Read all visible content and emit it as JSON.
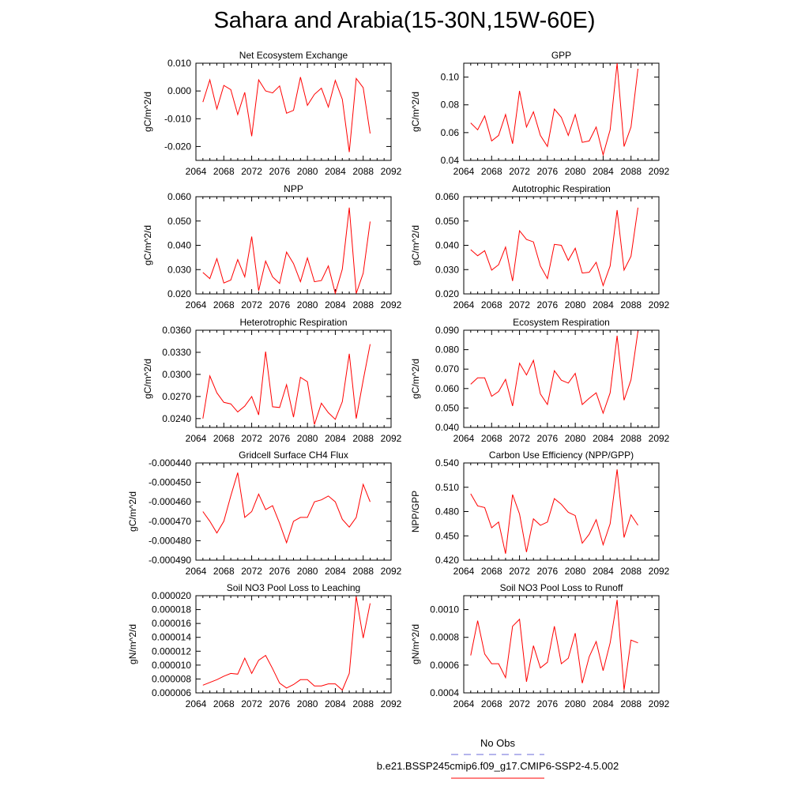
{
  "title": "Sahara and Arabia(15-30N,15W-60E)",
  "colors": {
    "series": "#ff0000",
    "obs": "#6a6ad8",
    "axis": "#000000"
  },
  "legend": {
    "obs_label": "No Obs",
    "model_label": "b.e21.BSSP245cmip6.f09_g17.CMIP6-SSP2-4.5.002"
  },
  "chart_data": [
    {
      "type": "line",
      "title": "Net Ecosystem Exchange",
      "ylabel": "gC/m^2/d",
      "xlim": [
        2064,
        2092
      ],
      "xticks": [
        "2064",
        "2068",
        "2072",
        "2076",
        "2080",
        "2084",
        "2088",
        "2092"
      ],
      "ylim": [
        -0.025,
        0.01
      ],
      "yticks": [
        "0.010",
        "0.000",
        "-0.010",
        "-0.020"
      ],
      "x": [
        2065,
        2066,
        2067,
        2068,
        2069,
        2070,
        2071,
        2072,
        2073,
        2074,
        2075,
        2076,
        2077,
        2078,
        2079,
        2080,
        2081,
        2082,
        2083,
        2084,
        2085,
        2086,
        2087,
        2088,
        2089
      ],
      "values": [
        -0.004,
        0.004,
        -0.0065,
        0.002,
        0.0005,
        -0.0085,
        -0.0005,
        -0.0163,
        0.004,
        0.0,
        -0.0007,
        0.0018,
        -0.008,
        -0.007,
        0.005,
        -0.0052,
        -0.0012,
        0.001,
        -0.0058,
        0.0038,
        -0.003,
        -0.022,
        0.0045,
        0.0012,
        -0.0153
      ]
    },
    {
      "type": "line",
      "title": "GPP",
      "ylabel": "gC/m^2/d",
      "xlim": [
        2064,
        2092
      ],
      "xticks": [
        "2064",
        "2068",
        "2072",
        "2076",
        "2080",
        "2084",
        "2088",
        "2092"
      ],
      "ylim": [
        0.04,
        0.11
      ],
      "yticks": [
        "0.10",
        "0.08",
        "0.06",
        "0.04"
      ],
      "x": [
        2065,
        2066,
        2067,
        2068,
        2069,
        2070,
        2071,
        2072,
        2073,
        2074,
        2075,
        2076,
        2077,
        2078,
        2079,
        2080,
        2081,
        2082,
        2083,
        2084,
        2085,
        2086,
        2087,
        2088,
        2089
      ],
      "values": [
        0.067,
        0.062,
        0.072,
        0.054,
        0.058,
        0.073,
        0.052,
        0.09,
        0.064,
        0.075,
        0.058,
        0.05,
        0.077,
        0.071,
        0.058,
        0.073,
        0.053,
        0.054,
        0.064,
        0.044,
        0.062,
        0.11,
        0.05,
        0.064,
        0.106
      ]
    },
    {
      "type": "line",
      "title": "NPP",
      "ylabel": "gC/m^2/d",
      "xlim": [
        2064,
        2092
      ],
      "xticks": [
        "2064",
        "2068",
        "2072",
        "2076",
        "2080",
        "2084",
        "2088",
        "2092"
      ],
      "ylim": [
        0.02,
        0.06
      ],
      "yticks": [
        "0.060",
        "0.050",
        "0.040",
        "0.030",
        "0.020"
      ],
      "x": [
        2065,
        2066,
        2067,
        2068,
        2069,
        2070,
        2071,
        2072,
        2073,
        2074,
        2075,
        2076,
        2077,
        2078,
        2079,
        2080,
        2081,
        2082,
        2083,
        2084,
        2085,
        2086,
        2087,
        2088,
        2089
      ],
      "values": [
        0.0288,
        0.0263,
        0.0345,
        0.0245,
        0.0257,
        0.0341,
        0.027,
        0.0436,
        0.0213,
        0.0335,
        0.027,
        0.0243,
        0.0372,
        0.0325,
        0.025,
        0.0348,
        0.025,
        0.0255,
        0.0315,
        0.0202,
        0.0302,
        0.0555,
        0.0202,
        0.0285,
        0.0498
      ]
    },
    {
      "type": "line",
      "title": "Autotrophic Respiration",
      "ylabel": "gC/m^2/d",
      "xlim": [
        2064,
        2092
      ],
      "xticks": [
        "2064",
        "2068",
        "2072",
        "2076",
        "2080",
        "2084",
        "2088",
        "2092"
      ],
      "ylim": [
        0.02,
        0.06
      ],
      "yticks": [
        "0.060",
        "0.050",
        "0.040",
        "0.030",
        "0.020"
      ],
      "x": [
        2065,
        2066,
        2067,
        2068,
        2069,
        2070,
        2071,
        2072,
        2073,
        2074,
        2075,
        2076,
        2077,
        2078,
        2079,
        2080,
        2081,
        2082,
        2083,
        2084,
        2085,
        2086,
        2087,
        2088,
        2089
      ],
      "values": [
        0.0382,
        0.0357,
        0.0378,
        0.0298,
        0.032,
        0.0393,
        0.0253,
        0.046,
        0.0424,
        0.0414,
        0.0315,
        0.0263,
        0.0404,
        0.04,
        0.0338,
        0.0388,
        0.0286,
        0.0289,
        0.033,
        0.0234,
        0.0315,
        0.0545,
        0.0298,
        0.0355,
        0.0555
      ]
    },
    {
      "type": "line",
      "title": "Heterotrophic Respiration",
      "ylabel": "gC/m^2/d",
      "xlim": [
        2064,
        2092
      ],
      "xticks": [
        "2064",
        "2068",
        "2072",
        "2076",
        "2080",
        "2084",
        "2088",
        "2092"
      ],
      "ylim": [
        0.0228,
        0.036
      ],
      "yticks": [
        "0.0360",
        "0.0330",
        "0.0300",
        "0.0270",
        "0.0240"
      ],
      "x": [
        2065,
        2066,
        2067,
        2068,
        2069,
        2070,
        2071,
        2072,
        2073,
        2074,
        2075,
        2076,
        2077,
        2078,
        2079,
        2080,
        2081,
        2082,
        2083,
        2084,
        2085,
        2086,
        2087,
        2088,
        2089
      ],
      "values": [
        0.024,
        0.0298,
        0.0275,
        0.0262,
        0.026,
        0.0249,
        0.0257,
        0.027,
        0.0245,
        0.0331,
        0.0256,
        0.0255,
        0.0286,
        0.0242,
        0.0296,
        0.029,
        0.0232,
        0.0261,
        0.0248,
        0.0239,
        0.0263,
        0.0328,
        0.024,
        0.0292,
        0.0341
      ]
    },
    {
      "type": "line",
      "title": "Ecosystem Respiration",
      "ylabel": "gC/m^2/d",
      "xlim": [
        2064,
        2092
      ],
      "xticks": [
        "2064",
        "2068",
        "2072",
        "2076",
        "2080",
        "2084",
        "2088",
        "2092"
      ],
      "ylim": [
        0.04,
        0.09
      ],
      "yticks": [
        "0.090",
        "0.080",
        "0.070",
        "0.060",
        "0.050",
        "0.040"
      ],
      "x": [
        2065,
        2066,
        2067,
        2068,
        2069,
        2070,
        2071,
        2072,
        2073,
        2074,
        2075,
        2076,
        2077,
        2078,
        2079,
        2080,
        2081,
        2082,
        2083,
        2084,
        2085,
        2086,
        2087,
        2088,
        2089
      ],
      "values": [
        0.0622,
        0.0655,
        0.0655,
        0.056,
        0.0585,
        0.0647,
        0.051,
        0.073,
        0.067,
        0.0745,
        0.0572,
        0.0518,
        0.0692,
        0.0643,
        0.0628,
        0.0678,
        0.0518,
        0.055,
        0.0578,
        0.0473,
        0.0578,
        0.0872,
        0.054,
        0.0645,
        0.0895
      ]
    },
    {
      "type": "line",
      "title": "Gridcell Surface CH4 Flux",
      "ylabel": "gC/m^2/d",
      "xlim": [
        2064,
        2092
      ],
      "xticks": [
        "2064",
        "2068",
        "2072",
        "2076",
        "2080",
        "2084",
        "2088",
        "2092"
      ],
      "ylim": [
        -0.00049,
        -0.00044
      ],
      "yticks": [
        "-0.000440",
        "-0.000450",
        "-0.000460",
        "-0.000470",
        "-0.000480",
        "-0.000490"
      ],
      "x": [
        2065,
        2066,
        2067,
        2068,
        2069,
        2070,
        2071,
        2072,
        2073,
        2074,
        2075,
        2076,
        2077,
        2078,
        2079,
        2080,
        2081,
        2082,
        2083,
        2084,
        2085,
        2086,
        2087,
        2088,
        2089
      ],
      "values": [
        -0.000465,
        -0.00047,
        -0.000476,
        -0.00047,
        -0.000457,
        -0.000445,
        -0.000468,
        -0.000465,
        -0.000456,
        -0.000464,
        -0.000462,
        -0.000471,
        -0.000481,
        -0.00047,
        -0.000468,
        -0.000468,
        -0.00046,
        -0.000459,
        -0.000457,
        -0.00046,
        -0.000469,
        -0.000473,
        -0.000468,
        -0.000451,
        -0.00046
      ]
    },
    {
      "type": "line",
      "title": "Carbon Use Efficiency (NPP/GPP)",
      "ylabel": "NPP/GPP",
      "xlim": [
        2064,
        2092
      ],
      "xticks": [
        "2064",
        "2068",
        "2072",
        "2076",
        "2080",
        "2084",
        "2088",
        "2092"
      ],
      "ylim": [
        0.42,
        0.54
      ],
      "yticks": [
        "0.540",
        "0.510",
        "0.480",
        "0.450",
        "0.420"
      ],
      "x": [
        2065,
        2066,
        2067,
        2068,
        2069,
        2070,
        2071,
        2072,
        2073,
        2074,
        2075,
        2076,
        2077,
        2078,
        2079,
        2080,
        2081,
        2082,
        2083,
        2084,
        2085,
        2086,
        2087,
        2088,
        2089
      ],
      "values": [
        0.502,
        0.487,
        0.485,
        0.46,
        0.467,
        0.428,
        0.501,
        0.477,
        0.43,
        0.471,
        0.463,
        0.467,
        0.496,
        0.489,
        0.479,
        0.475,
        0.441,
        0.452,
        0.47,
        0.439,
        0.465,
        0.532,
        0.448,
        0.476,
        0.463
      ]
    },
    {
      "type": "line",
      "title": "Soil NO3 Pool Loss to Leaching",
      "ylabel": "gN/m^2/d",
      "xlim": [
        2064,
        2092
      ],
      "xticks": [
        "2064",
        "2068",
        "2072",
        "2076",
        "2080",
        "2084",
        "2088",
        "2092"
      ],
      "ylim": [
        6e-06,
        2e-05
      ],
      "yticks": [
        "0.000020",
        "0.000018",
        "0.000016",
        "0.000014",
        "0.000012",
        "0.000010",
        "0.000008",
        "0.000006"
      ],
      "x": [
        2065,
        2066,
        2067,
        2068,
        2069,
        2070,
        2071,
        2072,
        2073,
        2074,
        2075,
        2076,
        2077,
        2078,
        2079,
        2080,
        2081,
        2082,
        2083,
        2084,
        2085,
        2086,
        2087,
        2088,
        2089
      ],
      "values": [
        7.1e-06,
        7.5e-06,
        7.9e-06,
        8.4e-06,
        8.8e-06,
        8.7e-06,
        1.1e-05,
        8.8e-06,
        1.07e-05,
        1.14e-05,
        9.5e-06,
        7.4e-06,
        6.7e-06,
        7.2e-06,
        7.9e-06,
        7.9e-06,
        7e-06,
        7e-06,
        7.3e-06,
        7.3e-06,
        6.4e-06,
        8.8e-06,
        1.99e-05,
        1.39e-05,
        1.89e-05
      ]
    },
    {
      "type": "line",
      "title": "Soil NO3 Pool Loss to Runoff",
      "ylabel": "gN/m^2/d",
      "xlim": [
        2064,
        2092
      ],
      "xticks": [
        "2064",
        "2068",
        "2072",
        "2076",
        "2080",
        "2084",
        "2088",
        "2092"
      ],
      "ylim": [
        0.0004,
        0.0011
      ],
      "yticks": [
        "0.0010",
        "0.0008",
        "0.0006",
        "0.0004"
      ],
      "x": [
        2065,
        2066,
        2067,
        2068,
        2069,
        2070,
        2071,
        2072,
        2073,
        2074,
        2075,
        2076,
        2077,
        2078,
        2079,
        2080,
        2081,
        2082,
        2083,
        2084,
        2085,
        2086,
        2087,
        2088,
        2089
      ],
      "values": [
        0.00067,
        0.00092,
        0.00068,
        0.00061,
        0.00061,
        0.00051,
        0.00088,
        0.00093,
        0.00048,
        0.00074,
        0.00058,
        0.00062,
        0.00088,
        0.00061,
        0.00065,
        0.00083,
        0.00047,
        0.00066,
        0.00077,
        0.00056,
        0.00076,
        0.00107,
        0.00042,
        0.00078,
        0.00076
      ]
    }
  ]
}
